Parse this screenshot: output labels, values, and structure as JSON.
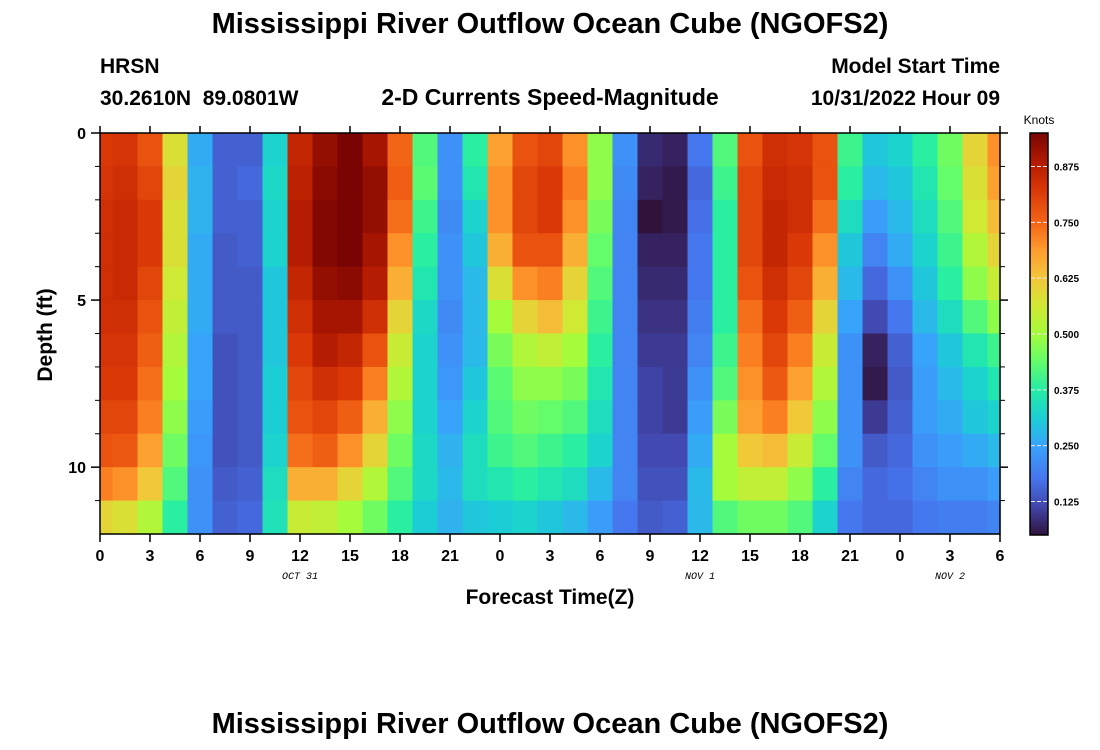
{
  "page": {
    "title": "Mississippi River Outflow Ocean Cube (NGOFS2)",
    "title_repeat": "Mississippi River Outflow Ocean Cube (NGOFS2)",
    "station": "HRSN",
    "coords": "30.2610N  89.0801W",
    "subtitle": "2-D Currents Speed-Magnitude",
    "model_start_label": "Model Start Time",
    "model_start_value": "10/31/2022 Hour 09"
  },
  "chart_data": {
    "type": "heatmap",
    "title": "2-D Currents Speed-Magnitude",
    "xlabel": "Forecast Time(Z)",
    "ylabel": "Depth (ft)",
    "ylim": [
      0,
      12
    ],
    "y_ticks": [
      0,
      5,
      10
    ],
    "x_range_hours": [
      0,
      54
    ],
    "x_tick_labels": [
      "0",
      "3",
      "6",
      "9",
      "12",
      "15",
      "18",
      "21",
      "0",
      "3",
      "6",
      "9",
      "12",
      "15",
      "18",
      "21",
      "0",
      "3",
      "6"
    ],
    "date_labels": [
      {
        "text": "OCT 31",
        "hour": 12
      },
      {
        "text": "NOV 1",
        "hour": 36
      },
      {
        "text": "NOV 2",
        "hour": 51
      }
    ],
    "colorbar": {
      "label": "Knots",
      "vmin": 0.05,
      "vmax": 0.95,
      "ticks": [
        0.125,
        0.25,
        0.375,
        0.5,
        0.625,
        0.75,
        0.875
      ],
      "tick_labels": [
        "0.125",
        "0.250",
        "0.375",
        "0.500",
        "0.625",
        "0.750",
        "0.875"
      ]
    },
    "depths_ft": [
      0.5,
      1.5,
      2.5,
      3.5,
      4.5,
      5.5,
      6.5,
      7.5,
      8.5,
      9.5,
      10.5,
      11.5
    ],
    "hours": [
      0,
      1.5,
      3,
      4.5,
      6,
      7.5,
      9,
      10.5,
      12,
      13.5,
      15,
      16.5,
      18,
      19.5,
      21,
      22.5,
      24,
      25.5,
      27,
      28.5,
      30,
      31.5,
      33,
      34.5,
      36,
      37.5,
      39,
      40.5,
      42,
      43.5,
      45,
      46.5,
      48,
      49.5,
      51,
      52.5,
      54
    ],
    "speed_knots": [
      [
        0.82,
        0.83,
        0.78,
        0.58,
        0.26,
        0.15,
        0.15,
        0.32,
        0.86,
        0.92,
        0.95,
        0.9,
        0.75,
        0.42,
        0.22,
        0.38,
        0.68,
        0.78,
        0.8,
        0.7,
        0.48,
        0.22,
        0.08,
        0.07,
        0.18,
        0.42,
        0.78,
        0.84,
        0.83,
        0.78,
        0.4,
        0.3,
        0.32,
        0.38,
        0.45,
        0.6,
        0.7
      ],
      [
        0.83,
        0.84,
        0.8,
        0.6,
        0.27,
        0.15,
        0.16,
        0.33,
        0.87,
        0.93,
        0.96,
        0.92,
        0.76,
        0.43,
        0.22,
        0.36,
        0.7,
        0.8,
        0.82,
        0.72,
        0.48,
        0.21,
        0.07,
        0.06,
        0.16,
        0.4,
        0.8,
        0.85,
        0.84,
        0.78,
        0.38,
        0.28,
        0.3,
        0.36,
        0.44,
        0.58,
        0.68
      ],
      [
        0.84,
        0.85,
        0.82,
        0.58,
        0.27,
        0.15,
        0.15,
        0.32,
        0.88,
        0.94,
        0.96,
        0.92,
        0.74,
        0.4,
        0.21,
        0.32,
        0.7,
        0.8,
        0.82,
        0.7,
        0.46,
        0.2,
        0.03,
        0.06,
        0.17,
        0.38,
        0.8,
        0.86,
        0.84,
        0.74,
        0.34,
        0.24,
        0.28,
        0.34,
        0.42,
        0.56,
        0.64
      ],
      [
        0.84,
        0.85,
        0.82,
        0.58,
        0.26,
        0.14,
        0.15,
        0.32,
        0.88,
        0.94,
        0.95,
        0.9,
        0.7,
        0.38,
        0.22,
        0.3,
        0.66,
        0.78,
        0.78,
        0.66,
        0.44,
        0.2,
        0.07,
        0.07,
        0.18,
        0.38,
        0.8,
        0.86,
        0.82,
        0.7,
        0.3,
        0.2,
        0.26,
        0.32,
        0.4,
        0.52,
        0.6
      ],
      [
        0.84,
        0.85,
        0.8,
        0.56,
        0.26,
        0.14,
        0.14,
        0.3,
        0.86,
        0.92,
        0.93,
        0.88,
        0.66,
        0.36,
        0.22,
        0.28,
        0.58,
        0.7,
        0.72,
        0.6,
        0.42,
        0.2,
        0.08,
        0.08,
        0.18,
        0.38,
        0.78,
        0.84,
        0.8,
        0.66,
        0.28,
        0.16,
        0.22,
        0.3,
        0.38,
        0.48,
        0.55
      ],
      [
        0.84,
        0.84,
        0.78,
        0.54,
        0.26,
        0.14,
        0.14,
        0.3,
        0.84,
        0.9,
        0.9,
        0.84,
        0.6,
        0.33,
        0.21,
        0.28,
        0.5,
        0.6,
        0.64,
        0.56,
        0.4,
        0.2,
        0.09,
        0.09,
        0.19,
        0.38,
        0.74,
        0.82,
        0.76,
        0.6,
        0.25,
        0.12,
        0.18,
        0.28,
        0.34,
        0.42,
        0.48
      ],
      [
        0.83,
        0.83,
        0.76,
        0.52,
        0.25,
        0.13,
        0.14,
        0.3,
        0.82,
        0.88,
        0.86,
        0.78,
        0.55,
        0.32,
        0.22,
        0.28,
        0.46,
        0.52,
        0.54,
        0.5,
        0.38,
        0.2,
        0.1,
        0.1,
        0.2,
        0.4,
        0.72,
        0.8,
        0.72,
        0.55,
        0.22,
        0.07,
        0.15,
        0.25,
        0.3,
        0.36,
        0.4
      ],
      [
        0.82,
        0.82,
        0.74,
        0.5,
        0.25,
        0.13,
        0.14,
        0.31,
        0.8,
        0.84,
        0.82,
        0.72,
        0.52,
        0.32,
        0.23,
        0.3,
        0.43,
        0.48,
        0.48,
        0.46,
        0.36,
        0.2,
        0.11,
        0.1,
        0.22,
        0.42,
        0.7,
        0.77,
        0.68,
        0.52,
        0.22,
        0.06,
        0.14,
        0.24,
        0.28,
        0.32,
        0.36
      ],
      [
        0.8,
        0.8,
        0.72,
        0.48,
        0.24,
        0.13,
        0.14,
        0.31,
        0.78,
        0.8,
        0.76,
        0.66,
        0.48,
        0.32,
        0.25,
        0.32,
        0.42,
        0.45,
        0.44,
        0.42,
        0.34,
        0.2,
        0.11,
        0.1,
        0.24,
        0.46,
        0.68,
        0.72,
        0.62,
        0.48,
        0.22,
        0.1,
        0.15,
        0.24,
        0.26,
        0.3,
        0.32
      ],
      [
        0.78,
        0.77,
        0.68,
        0.45,
        0.23,
        0.13,
        0.14,
        0.32,
        0.74,
        0.76,
        0.7,
        0.6,
        0.45,
        0.33,
        0.27,
        0.34,
        0.4,
        0.42,
        0.4,
        0.38,
        0.32,
        0.2,
        0.12,
        0.12,
        0.26,
        0.5,
        0.62,
        0.64,
        0.55,
        0.44,
        0.22,
        0.14,
        0.16,
        0.22,
        0.24,
        0.26,
        0.28
      ],
      [
        0.72,
        0.7,
        0.62,
        0.42,
        0.22,
        0.14,
        0.15,
        0.34,
        0.66,
        0.66,
        0.6,
        0.52,
        0.42,
        0.33,
        0.28,
        0.34,
        0.36,
        0.38,
        0.36,
        0.34,
        0.28,
        0.2,
        0.13,
        0.13,
        0.28,
        0.5,
        0.54,
        0.54,
        0.48,
        0.38,
        0.2,
        0.16,
        0.17,
        0.2,
        0.22,
        0.22,
        0.24
      ],
      [
        0.6,
        0.58,
        0.52,
        0.38,
        0.22,
        0.15,
        0.16,
        0.35,
        0.55,
        0.54,
        0.5,
        0.45,
        0.38,
        0.31,
        0.27,
        0.3,
        0.31,
        0.32,
        0.3,
        0.28,
        0.24,
        0.18,
        0.14,
        0.15,
        0.28,
        0.42,
        0.45,
        0.45,
        0.42,
        0.32,
        0.18,
        0.16,
        0.16,
        0.18,
        0.19,
        0.19,
        0.2
      ]
    ]
  }
}
